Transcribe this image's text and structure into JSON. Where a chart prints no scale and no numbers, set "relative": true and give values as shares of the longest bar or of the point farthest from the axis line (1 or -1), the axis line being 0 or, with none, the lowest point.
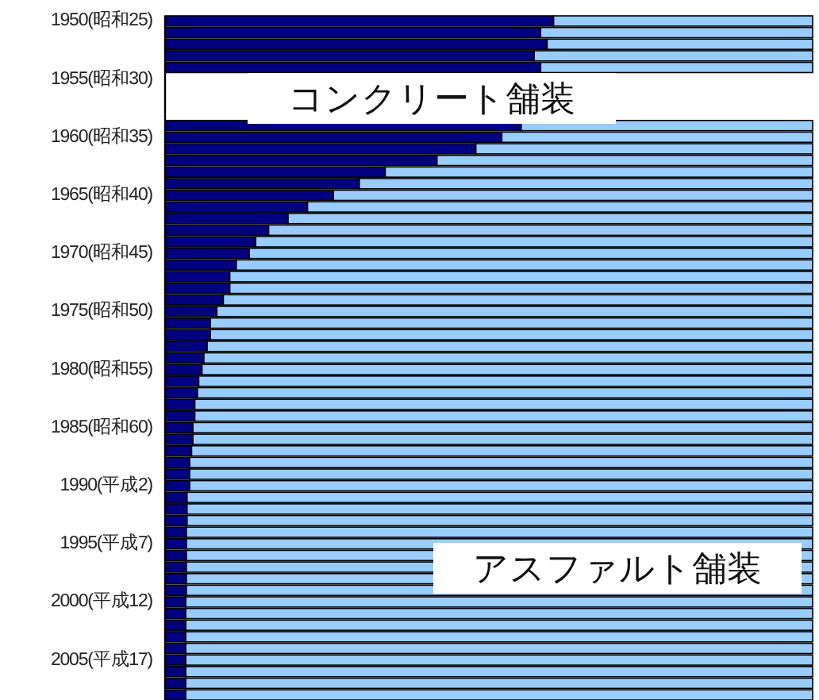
{
  "chart_data": {
    "type": "bar",
    "orientation": "horizontal",
    "stacked": true,
    "relative": true,
    "categories": [
      "1950(昭和25)",
      null,
      null,
      null,
      null,
      "1955(昭和30)",
      null,
      null,
      null,
      null,
      "1960(昭和35)",
      null,
      null,
      null,
      null,
      "1965(昭和40)",
      null,
      null,
      null,
      null,
      "1970(昭和45)",
      null,
      null,
      null,
      null,
      "1975(昭和50)",
      null,
      null,
      null,
      null,
      "1980(昭和55)",
      null,
      null,
      null,
      null,
      "1985(昭和60)",
      null,
      null,
      null,
      null,
      "1990(平成2)",
      null,
      null,
      null,
      null,
      "1995(平成7)",
      null,
      null,
      null,
      null,
      "2000(平成12)",
      null,
      null,
      null,
      null,
      "2005(平成17)",
      null,
      null,
      null
    ],
    "series": [
      {
        "name": "コンクリート舗装",
        "color": "#000080",
        "values": [
          0.6,
          0.58,
          0.59,
          0.57,
          0.58,
          null,
          null,
          null,
          null,
          0.55,
          0.52,
          0.48,
          0.42,
          0.34,
          0.3,
          0.26,
          0.22,
          0.19,
          0.16,
          0.14,
          0.13,
          0.11,
          0.1,
          0.1,
          0.09,
          0.08,
          0.07,
          0.07,
          0.065,
          0.06,
          0.057,
          0.052,
          0.05,
          0.046,
          0.046,
          0.043,
          0.043,
          0.041,
          0.038,
          0.038,
          0.038,
          0.034,
          0.034,
          0.034,
          0.033,
          0.033,
          0.033,
          0.033,
          0.033,
          0.033,
          0.032,
          0.032,
          0.032,
          0.032,
          0.032,
          0.032,
          0.032,
          0.032,
          0.032
        ]
      },
      {
        "name": "アスファルト舗装",
        "color": "#99ccff",
        "values": [
          0.4,
          0.42,
          0.41,
          0.43,
          0.42,
          null,
          null,
          null,
          null,
          0.45,
          0.48,
          0.52,
          0.58,
          0.66,
          0.7,
          0.74,
          0.78,
          0.81,
          0.84,
          0.86,
          0.87,
          0.89,
          0.9,
          0.9,
          0.91,
          0.92,
          0.93,
          0.93,
          0.935,
          0.94,
          0.943,
          0.948,
          0.95,
          0.954,
          0.954,
          0.957,
          0.957,
          0.959,
          0.962,
          0.962,
          0.962,
          0.966,
          0.966,
          0.966,
          0.967,
          0.967,
          0.967,
          0.967,
          0.967,
          0.967,
          0.968,
          0.968,
          0.968,
          0.968,
          0.968,
          0.968,
          0.968,
          0.968,
          0.968
        ]
      }
    ]
  }
}
